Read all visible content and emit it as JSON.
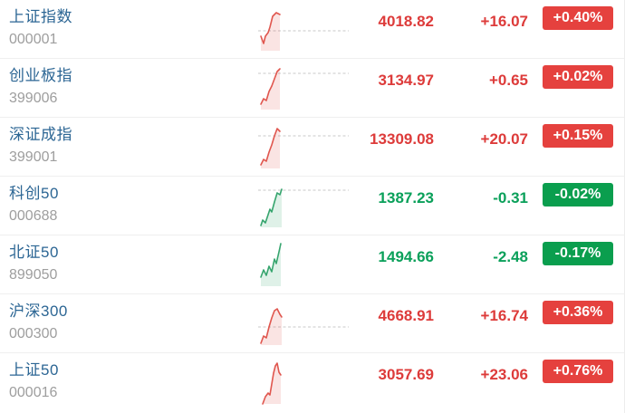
{
  "colors": {
    "name_blue": "#2c6694",
    "code_gray": "#9e9e9e",
    "up_text": "#dd3b3a",
    "up_badge_bg": "#e5413e",
    "down_text": "#0aa05a",
    "down_badge_bg": "#0a9e4e",
    "spark_up_line": "#e0564e",
    "spark_up_fill": "rgba(224,86,78,0.16)",
    "spark_down_line": "#36a56e",
    "spark_down_fill": "rgba(54,165,110,0.16)",
    "spark_baseline": "#c8c8c8"
  },
  "list": {
    "rows": [
      {
        "name": "上证指数",
        "code": "000001",
        "price": "4018.82",
        "change": "+16.07",
        "change_pct": "+0.40%",
        "direction": "up",
        "spark": {
          "baseline": 28,
          "points": [
            [
              3,
              34
            ],
            [
              6,
              42
            ],
            [
              8,
              34
            ],
            [
              11,
              30
            ],
            [
              13,
              24
            ],
            [
              16,
              12
            ],
            [
              20,
              8
            ],
            [
              24,
              10
            ]
          ]
        }
      },
      {
        "name": "创业板指",
        "code": "399006",
        "price": "3134.97",
        "change": "+0.65",
        "change_pct": "+0.02%",
        "direction": "up",
        "spark": {
          "baseline": 10,
          "points": [
            [
              3,
              44
            ],
            [
              6,
              38
            ],
            [
              9,
              40
            ],
            [
              12,
              30
            ],
            [
              15,
              24
            ],
            [
              18,
              16
            ],
            [
              21,
              8
            ],
            [
              24,
              5
            ]
          ]
        }
      },
      {
        "name": "深证成指",
        "code": "399001",
        "price": "13309.08",
        "change": "+20.07",
        "change_pct": "+0.15%",
        "direction": "up",
        "spark": {
          "baseline": 14,
          "points": [
            [
              3,
              46
            ],
            [
              6,
              40
            ],
            [
              9,
              42
            ],
            [
              12,
              32
            ],
            [
              15,
              24
            ],
            [
              18,
              14
            ],
            [
              21,
              6
            ],
            [
              24,
              9
            ]
          ]
        }
      },
      {
        "name": "科创50",
        "code": "000688",
        "price": "1387.23",
        "change": "-0.31",
        "change_pct": "-0.02%",
        "direction": "down",
        "spark": {
          "baseline": 9,
          "points": [
            [
              3,
              48
            ],
            [
              5,
              42
            ],
            [
              8,
              45
            ],
            [
              11,
              36
            ],
            [
              13,
              30
            ],
            [
              15,
              33
            ],
            [
              18,
              22
            ],
            [
              21,
              12
            ],
            [
              24,
              14
            ],
            [
              26,
              8
            ]
          ]
        }
      },
      {
        "name": "北证50",
        "code": "899050",
        "price": "1494.66",
        "change": "-2.48",
        "change_pct": "-0.17%",
        "direction": "down",
        "spark": {
          "baseline": null,
          "points": [
            [
              3,
              40
            ],
            [
              6,
              32
            ],
            [
              9,
              38
            ],
            [
              12,
              28
            ],
            [
              15,
              34
            ],
            [
              18,
              20
            ],
            [
              20,
              25
            ],
            [
              23,
              12
            ],
            [
              25,
              3
            ]
          ]
        }
      },
      {
        "name": "沪深300",
        "code": "000300",
        "price": "4668.91",
        "change": "+16.74",
        "change_pct": "+0.36%",
        "direction": "up",
        "spark": {
          "baseline": 30,
          "points": [
            [
              3,
              48
            ],
            [
              6,
              40
            ],
            [
              9,
              42
            ],
            [
              12,
              30
            ],
            [
              15,
              20
            ],
            [
              18,
              12
            ],
            [
              21,
              10
            ],
            [
              24,
              16
            ],
            [
              26,
              19
            ]
          ]
        }
      },
      {
        "name": "上证50",
        "code": "000016",
        "price": "3057.69",
        "change": "+23.06",
        "change_pct": "+0.76%",
        "direction": "up",
        "spark": {
          "baseline": null,
          "points": [
            [
              5,
              50
            ],
            [
              8,
              42
            ],
            [
              11,
              38
            ],
            [
              13,
              40
            ],
            [
              15,
              28
            ],
            [
              17,
              16
            ],
            [
              19,
              8
            ],
            [
              21,
              5
            ],
            [
              23,
              15
            ],
            [
              25,
              18
            ]
          ]
        }
      }
    ]
  }
}
